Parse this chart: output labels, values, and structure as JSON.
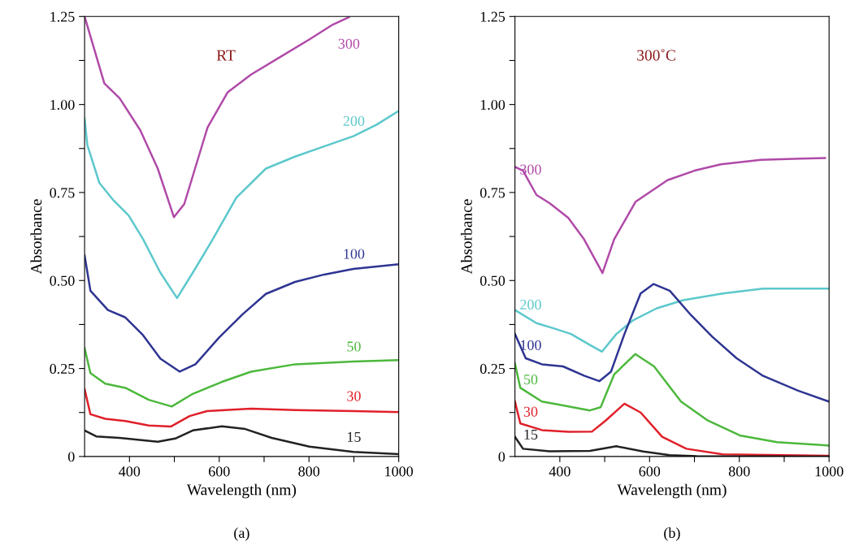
{
  "chart_data": [
    {
      "type": "line",
      "title": "(a)",
      "xlabel": "Wavelength (nm)",
      "ylabel": "Absorbance",
      "annotations": [
        "RT"
      ],
      "xlim": [
        300,
        1000
      ],
      "ylim": [
        0,
        1.25
      ],
      "xticks": [
        400,
        {
          "value": 500,
          "label": null
        },
        600,
        {
          "value": 700,
          "label": null
        },
        800,
        {
          "value": 900,
          "label": null
        },
        1000
      ],
      "yticks": [
        0,
        {
          "value": 0.125,
          "label": null
        },
        0.25,
        {
          "value": 0.375,
          "label": null
        },
        {
          "value": 0.5,
          "label": "0.50"
        },
        {
          "value": 0.625,
          "label": null
        },
        0.75,
        {
          "value": 0.875,
          "label": null
        },
        {
          "value": 1.0,
          "label": "1.00"
        },
        {
          "value": 1.125,
          "label": null
        },
        1.25
      ],
      "grid": false,
      "legend": false,
      "marker": "none",
      "line_style": "solid",
      "series": [
        {
          "name": "300",
          "color": "#b04aa8",
          "x": [
            300,
            344,
            378,
            424,
            463,
            499,
            522,
            574,
            619,
            671,
            736,
            801,
            853,
            889
          ],
          "values": [
            1.25,
            1.06,
            1.018,
            0.927,
            0.818,
            0.68,
            0.717,
            0.935,
            1.035,
            1.085,
            1.135,
            1.185,
            1.227,
            1.248
          ]
        },
        {
          "name": "200",
          "color": "#5cc8cc",
          "x": [
            300,
            306,
            333,
            365,
            398,
            430,
            469,
            506,
            541,
            586,
            638,
            704,
            769,
            834,
            899,
            951,
            998
          ],
          "values": [
            0.96,
            0.885,
            0.777,
            0.727,
            0.685,
            0.618,
            0.522,
            0.45,
            0.522,
            0.618,
            0.735,
            0.818,
            0.852,
            0.881,
            0.91,
            0.943,
            0.98
          ]
        },
        {
          "name": "100",
          "color": "#2e3592",
          "x": [
            300,
            313,
            352,
            391,
            430,
            469,
            512,
            547,
            599,
            652,
            704,
            769,
            834,
            899,
            998
          ],
          "values": [
            0.571,
            0.471,
            0.416,
            0.395,
            0.345,
            0.278,
            0.241,
            0.262,
            0.337,
            0.404,
            0.462,
            0.496,
            0.517,
            0.533,
            0.546
          ]
        },
        {
          "name": "50",
          "color": "#4cb83c",
          "x": [
            300,
            313,
            346,
            391,
            443,
            494,
            541,
            606,
            671,
            769,
            899,
            998
          ],
          "values": [
            0.308,
            0.237,
            0.207,
            0.195,
            0.161,
            0.142,
            0.178,
            0.212,
            0.241,
            0.262,
            0.27,
            0.274
          ]
        },
        {
          "name": "30",
          "color": "#e0202a",
          "x": [
            300,
            313,
            346,
            391,
            443,
            492,
            534,
            573,
            671,
            769,
            899,
            998
          ],
          "values": [
            0.191,
            0.12,
            0.107,
            0.101,
            0.088,
            0.085,
            0.115,
            0.129,
            0.136,
            0.132,
            0.129,
            0.126
          ]
        },
        {
          "name": "15",
          "color": "#222222",
          "x": [
            300,
            326,
            378,
            463,
            502,
            541,
            606,
            658,
            717,
            801,
            899,
            998
          ],
          "values": [
            0.074,
            0.057,
            0.053,
            0.042,
            0.051,
            0.074,
            0.086,
            0.078,
            0.053,
            0.028,
            0.013,
            0.007
          ]
        }
      ]
    },
    {
      "type": "line",
      "title": "(b)",
      "xlabel": "Wavelength (nm)",
      "ylabel": "Absorbance",
      "annotations": [
        "300˚C"
      ],
      "xlim": [
        300,
        1000
      ],
      "ylim": [
        0,
        1.25
      ],
      "xticks": [
        400,
        {
          "value": 500,
          "label": null
        },
        600,
        {
          "value": 700,
          "label": null
        },
        800,
        {
          "value": 900,
          "label": null
        },
        1000
      ],
      "yticks": [
        0,
        {
          "value": 0.125,
          "label": null
        },
        0.25,
        {
          "value": 0.375,
          "label": null
        },
        {
          "value": 0.5,
          "label": "0.50"
        },
        {
          "value": 0.625,
          "label": null
        },
        0.75,
        {
          "value": 0.875,
          "label": null
        },
        {
          "value": 1.0,
          "label": "1.00"
        },
        {
          "value": 1.125,
          "label": null
        },
        1.25
      ],
      "grid": false,
      "legend": false,
      "marker": "none",
      "line_style": "solid",
      "series": [
        {
          "name": "300",
          "color": "#b04aa8",
          "x": [
            300,
            318,
            348,
            377,
            419,
            454,
            490,
            495,
            521,
            569,
            640,
            700,
            759,
            848,
            937,
            991
          ],
          "values": [
            0.823,
            0.812,
            0.743,
            0.72,
            0.678,
            0.617,
            0.533,
            0.521,
            0.617,
            0.724,
            0.785,
            0.812,
            0.83,
            0.843,
            0.846,
            0.848
          ]
        },
        {
          "name": "200",
          "color": "#5cc8cc",
          "x": [
            300,
            348,
            389,
            425,
            467,
            494,
            526,
            562,
            616,
            675,
            763,
            853,
            1000
          ],
          "values": [
            0.416,
            0.379,
            0.363,
            0.348,
            0.317,
            0.298,
            0.348,
            0.386,
            0.421,
            0.444,
            0.463,
            0.477,
            0.477
          ]
        },
        {
          "name": "100",
          "color": "#2e3592",
          "x": [
            300,
            324,
            360,
            407,
            455,
            488,
            514,
            544,
            580,
            609,
            645,
            692,
            740,
            794,
            853,
            931,
            1000
          ],
          "values": [
            0.348,
            0.279,
            0.262,
            0.256,
            0.229,
            0.214,
            0.241,
            0.348,
            0.463,
            0.49,
            0.471,
            0.402,
            0.34,
            0.279,
            0.229,
            0.187,
            0.156
          ]
        },
        {
          "name": "50",
          "color": "#4cb83c",
          "x": [
            300,
            312,
            360,
            407,
            467,
            491,
            521,
            568,
            610,
            670,
            730,
            801,
            884,
            1000
          ],
          "values": [
            0.264,
            0.195,
            0.156,
            0.145,
            0.131,
            0.14,
            0.233,
            0.291,
            0.256,
            0.156,
            0.102,
            0.06,
            0.041,
            0.031
          ]
        },
        {
          "name": "30",
          "color": "#e0202a",
          "x": [
            300,
            312,
            360,
            419,
            472,
            502,
            544,
            580,
            628,
            682,
            763,
            1000
          ],
          "values": [
            0.156,
            0.094,
            0.075,
            0.07,
            0.071,
            0.102,
            0.15,
            0.125,
            0.056,
            0.022,
            0.006,
            0.002
          ]
        },
        {
          "name": "15",
          "color": "#222222",
          "x": [
            300,
            318,
            377,
            467,
            526,
            586,
            645,
            705,
            1000
          ],
          "values": [
            0.056,
            0.022,
            0.015,
            0.016,
            0.029,
            0.014,
            0.004,
            0.001,
            0.0
          ]
        }
      ]
    }
  ]
}
